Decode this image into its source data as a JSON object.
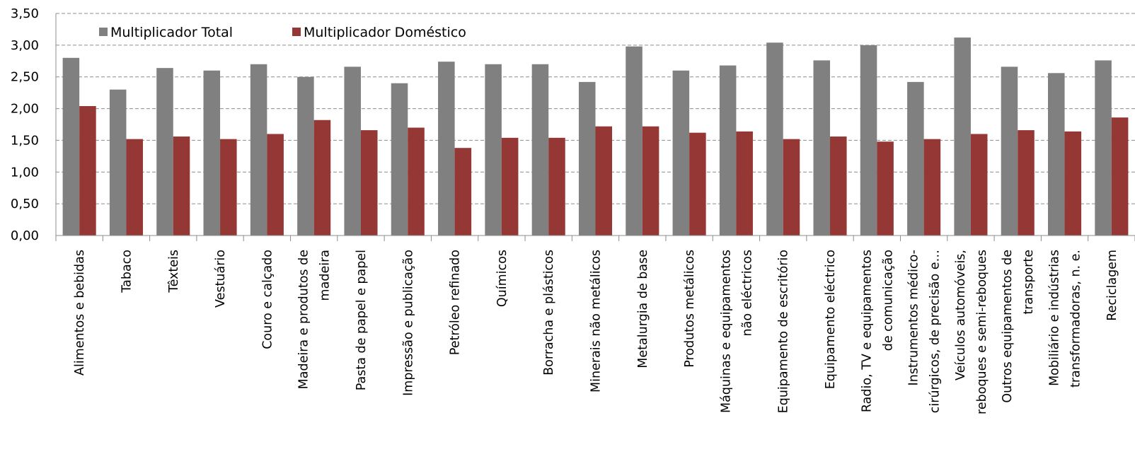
{
  "chart_data": {
    "type": "bar",
    "ylim": [
      0,
      3.5
    ],
    "yticks": [
      "0,00",
      "0,50",
      "1,00",
      "1,50",
      "2,00",
      "2,50",
      "3,00",
      "3,50"
    ],
    "grid": true,
    "legend_position": "top-left",
    "categories": [
      [
        "Alimentos e bebidas"
      ],
      [
        "Tabaco"
      ],
      [
        "Têxteis"
      ],
      [
        "Vestuário"
      ],
      [
        "Couro e calçado"
      ],
      [
        "Madeira e produtos de",
        "madeira"
      ],
      [
        "Pasta de papel e papel"
      ],
      [
        "Impressão e publicação"
      ],
      [
        "Petróleo refinado"
      ],
      [
        "Químicos"
      ],
      [
        "Borracha e plásticos"
      ],
      [
        "Minerais não metálicos"
      ],
      [
        "Metalurgia de base"
      ],
      [
        "Produtos metálicos"
      ],
      [
        "Máquinas e equipamentos",
        "não eléctricos"
      ],
      [
        "Equipamento de escritório"
      ],
      [
        "Equipamento eléctrico"
      ],
      [
        "Radio, TV e equipamentos",
        "de comunicação"
      ],
      [
        "Instrumentos médico-",
        "cirúrgicos, de precisão e…"
      ],
      [
        "Veículos automóveis,",
        "reboques e semi-reboques"
      ],
      [
        "Outros equipamentos de",
        "transporte"
      ],
      [
        "Mobiliário e indústrias",
        "transformadoras, n. e."
      ],
      [
        "Reciclagem"
      ]
    ],
    "series": [
      {
        "name": "Multiplicador Total",
        "color": "#808080",
        "values": [
          2.8,
          2.3,
          2.64,
          2.6,
          2.7,
          2.5,
          2.66,
          2.4,
          2.74,
          2.7,
          2.7,
          2.42,
          2.98,
          2.6,
          2.68,
          3.04,
          2.76,
          3.0,
          2.42,
          3.12,
          2.66,
          2.56,
          2.76
        ]
      },
      {
        "name": "Multiplicador Doméstico",
        "color": "#953735",
        "values": [
          2.04,
          1.52,
          1.56,
          1.52,
          1.6,
          1.82,
          1.66,
          1.7,
          1.38,
          1.54,
          1.54,
          1.72,
          1.72,
          1.62,
          1.64,
          1.52,
          1.56,
          1.48,
          1.52,
          1.6,
          1.66,
          1.64,
          1.86
        ]
      }
    ]
  }
}
